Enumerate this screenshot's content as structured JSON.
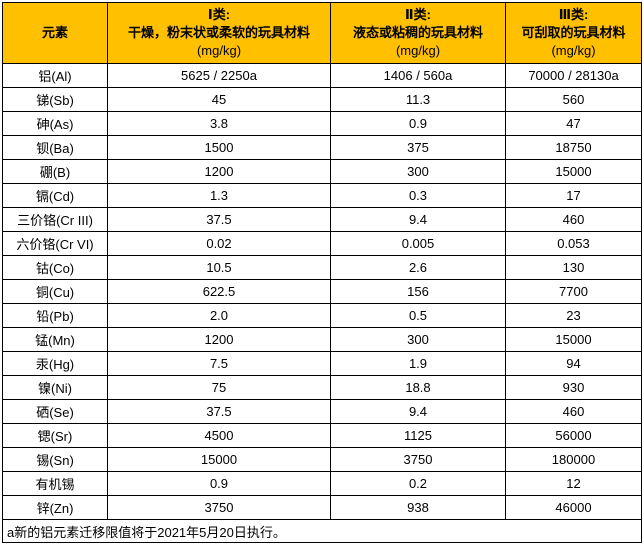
{
  "table": {
    "header": {
      "element_label": "元素",
      "columns": [
        {
          "class_label": "Ⅰ类:",
          "description": "干燥，粉末状或柔软的玩具材料",
          "unit": "(mg/kg)"
        },
        {
          "class_label": "Ⅱ类:",
          "description": "液态或粘稠的玩具材料",
          "unit": "(mg/kg)"
        },
        {
          "class_label": "Ⅲ类:",
          "description": "可刮取的玩具材料",
          "unit": "(mg/kg)"
        }
      ]
    },
    "rows": [
      {
        "element": "铝(Al)",
        "c1": "5625 / 2250a",
        "c2": "1406 / 560a",
        "c3": "70000 / 28130a"
      },
      {
        "element": "锑(Sb)",
        "c1": "45",
        "c2": "11.3",
        "c3": "560"
      },
      {
        "element": "砷(As)",
        "c1": "3.8",
        "c2": "0.9",
        "c3": "47"
      },
      {
        "element": "钡(Ba)",
        "c1": "1500",
        "c2": "375",
        "c3": "18750"
      },
      {
        "element": "硼(B)",
        "c1": "1200",
        "c2": "300",
        "c3": "15000"
      },
      {
        "element": "镉(Cd)",
        "c1": "1.3",
        "c2": "0.3",
        "c3": "17"
      },
      {
        "element": "三价铬(Cr III)",
        "c1": "37.5",
        "c2": "9.4",
        "c3": "460"
      },
      {
        "element": "六价铬(Cr VI)",
        "c1": "0.02",
        "c2": "0.005",
        "c3": "0.053"
      },
      {
        "element": "钴(Co)",
        "c1": "10.5",
        "c2": "2.6",
        "c3": "130"
      },
      {
        "element": "铜(Cu)",
        "c1": "622.5",
        "c2": "156",
        "c3": "7700"
      },
      {
        "element": "铅(Pb)",
        "c1": "2.0",
        "c2": "0.5",
        "c3": "23"
      },
      {
        "element": "锰(Mn)",
        "c1": "1200",
        "c2": "300",
        "c3": "15000"
      },
      {
        "element": "汞(Hg)",
        "c1": "7.5",
        "c2": "1.9",
        "c3": "94"
      },
      {
        "element": "镍(Ni)",
        "c1": "75",
        "c2": "18.8",
        "c3": "930"
      },
      {
        "element": "硒(Se)",
        "c1": "37.5",
        "c2": "9.4",
        "c3": "460"
      },
      {
        "element": "锶(Sr)",
        "c1": "4500",
        "c2": "1125",
        "c3": "56000"
      },
      {
        "element": "锡(Sn)",
        "c1": "15000",
        "c2": "3750",
        "c3": "180000"
      },
      {
        "element": "有机锡",
        "c1": "0.9",
        "c2": "0.2",
        "c3": "12"
      },
      {
        "element": "锌(Zn)",
        "c1": "3750",
        "c2": "938",
        "c3": "46000"
      }
    ],
    "footnote": "a新的铝元素迁移限值将于2021年5月20日执行。"
  },
  "colors": {
    "header_bg": "#FFC000",
    "border": "#000000",
    "cell_bg": "#FFFFFF",
    "text": "#000000"
  }
}
